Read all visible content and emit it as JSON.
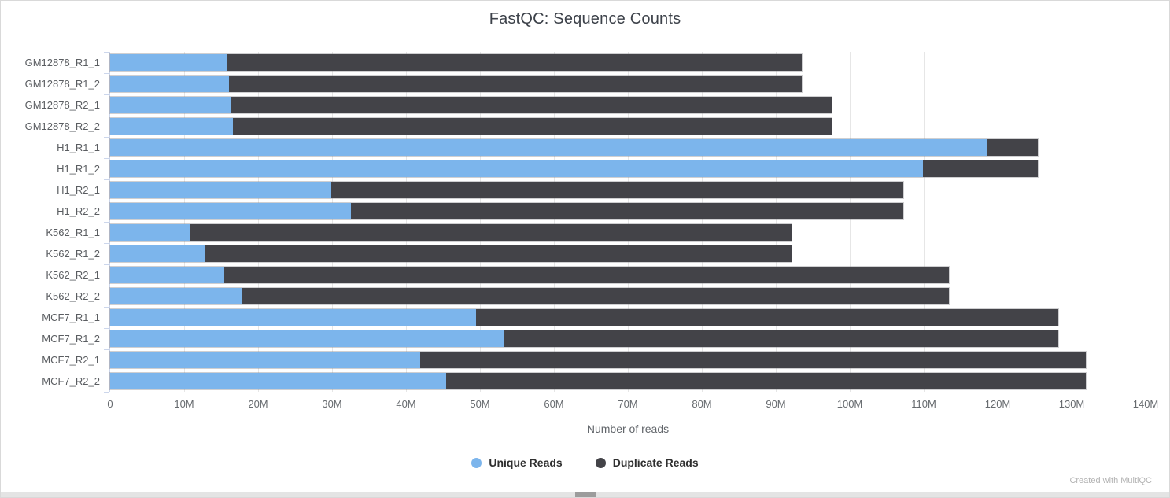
{
  "title": "FastQC: Sequence Counts",
  "footer": {
    "credit": "Created with MultiQC"
  },
  "colors": {
    "unique_reads": "#7cb5ec",
    "duplicate_reads": "#434348",
    "gridline": "#e6e6e6",
    "axis_line": "#ccd6eb",
    "panel_border": "#d9d9d9"
  },
  "scrollbar": {
    "present": true,
    "orientation": "horizontal"
  },
  "chart_data": {
    "type": "bar",
    "orientation": "horizontal",
    "stacked": true,
    "title": "FastQC: Sequence Counts",
    "xlabel": "Number of reads",
    "ylabel": "",
    "value_unit": "millions of reads",
    "xlim": [
      0,
      140
    ],
    "grid": true,
    "legend_position": "bottom",
    "x_tick_labels": [
      "0",
      "10M",
      "20M",
      "30M",
      "40M",
      "50M",
      "60M",
      "70M",
      "80M",
      "90M",
      "100M",
      "110M",
      "120M",
      "130M",
      "140M"
    ],
    "categories": [
      "GM12878_R1_1",
      "GM12878_R1_2",
      "GM12878_R2_1",
      "GM12878_R2_2",
      "H1_R1_1",
      "H1_R1_2",
      "H1_R2_1",
      "H1_R2_2",
      "K562_R1_1",
      "K562_R1_2",
      "K562_R2_1",
      "K562_R2_2",
      "MCF7_R1_1",
      "MCF7_R1_2",
      "MCF7_R2_1",
      "MCF7_R2_2"
    ],
    "series": [
      {
        "name": "Unique Reads",
        "color": "#7cb5ec",
        "values": [
          15.8,
          16.1,
          16.4,
          16.6,
          118.6,
          109.9,
          29.9,
          32.6,
          10.9,
          12.9,
          15.4,
          17.8,
          49.5,
          53.3,
          41.9,
          45.4
        ]
      },
      {
        "name": "Duplicate Reads",
        "color": "#434348",
        "values": [
          77.7,
          77.4,
          81.2,
          81.0,
          6.8,
          15.5,
          77.3,
          74.6,
          81.2,
          79.2,
          98.0,
          95.6,
          78.7,
          74.9,
          90.0,
          86.5
        ]
      }
    ],
    "totals": [
      93.5,
      93.5,
      97.6,
      97.6,
      125.4,
      125.4,
      107.2,
      107.2,
      92.1,
      92.1,
      113.4,
      113.4,
      128.2,
      128.2,
      131.9,
      131.9
    ]
  }
}
